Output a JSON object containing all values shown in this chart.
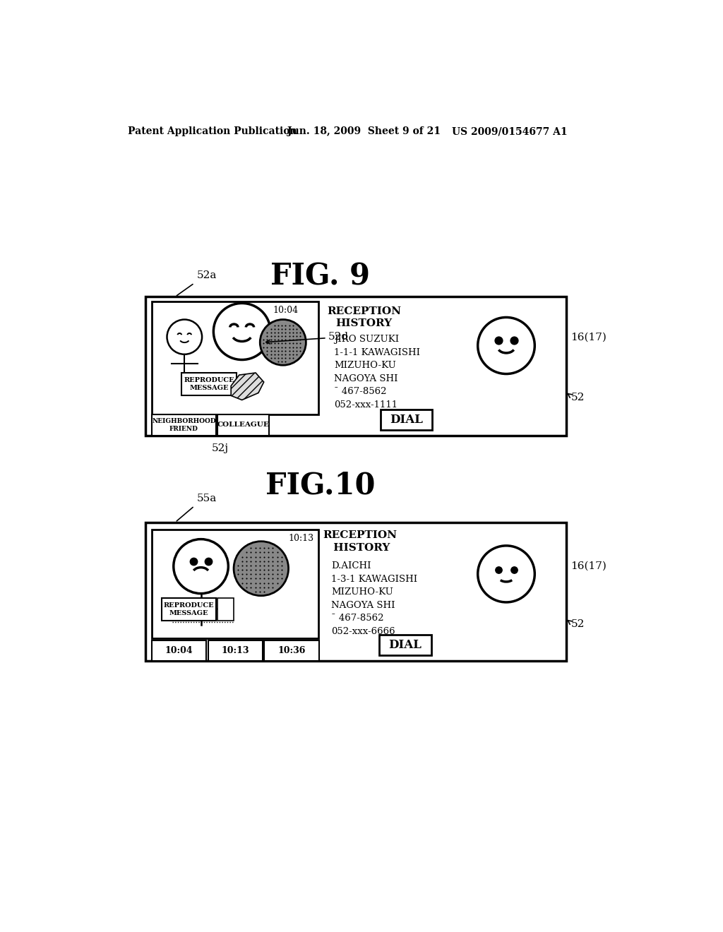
{
  "bg_color": "#ffffff",
  "header_left": "Patent Application Publication",
  "header_mid": "Jun. 18, 2009  Sheet 9 of 21",
  "header_right": "US 2009/0154677 A1",
  "fig9_title": "FIG. 9",
  "fig10_title": "FIG.10",
  "fig9_label_52a": "52a",
  "fig9_label_52d": "52d",
  "fig9_label_52j": "52j",
  "fig9_label_52": "52",
  "fig9_label_16_17": "16(17)",
  "fig10_label_55a": "55a",
  "fig10_label_52": "52",
  "fig10_label_16_17": "16(17)",
  "reception_history_9": "RECEPTION\nHISTORY",
  "reception_history_10": "RECEPTION\n HISTORY",
  "fig9_info": "JIRO SUZUKI\n1-1-1 KAWAGISHI\nMIZUHO-KU\nNAGOYA SHI\n¯ 467-8562\n052-xxx-1111",
  "fig10_info": "D.AICHI\n1-3-1 KAWAGISHI\nMIZUHO-KU\nNAGOYA SHI\n¯ 467-8562\n052-xxx-6666",
  "dial_text": "DIAL",
  "time_10_04": "10:04",
  "time_10_13": "10:13",
  "time_10_04b": "10:04",
  "time_10_13b": "10:13",
  "time_10_36": "10:36",
  "reproduce_message": "REPRODUCE\nMESSAGE",
  "neighborhood_friend": "NEIGHBORHOOD\nFRIEND",
  "colleague": "COLLEAGUE"
}
